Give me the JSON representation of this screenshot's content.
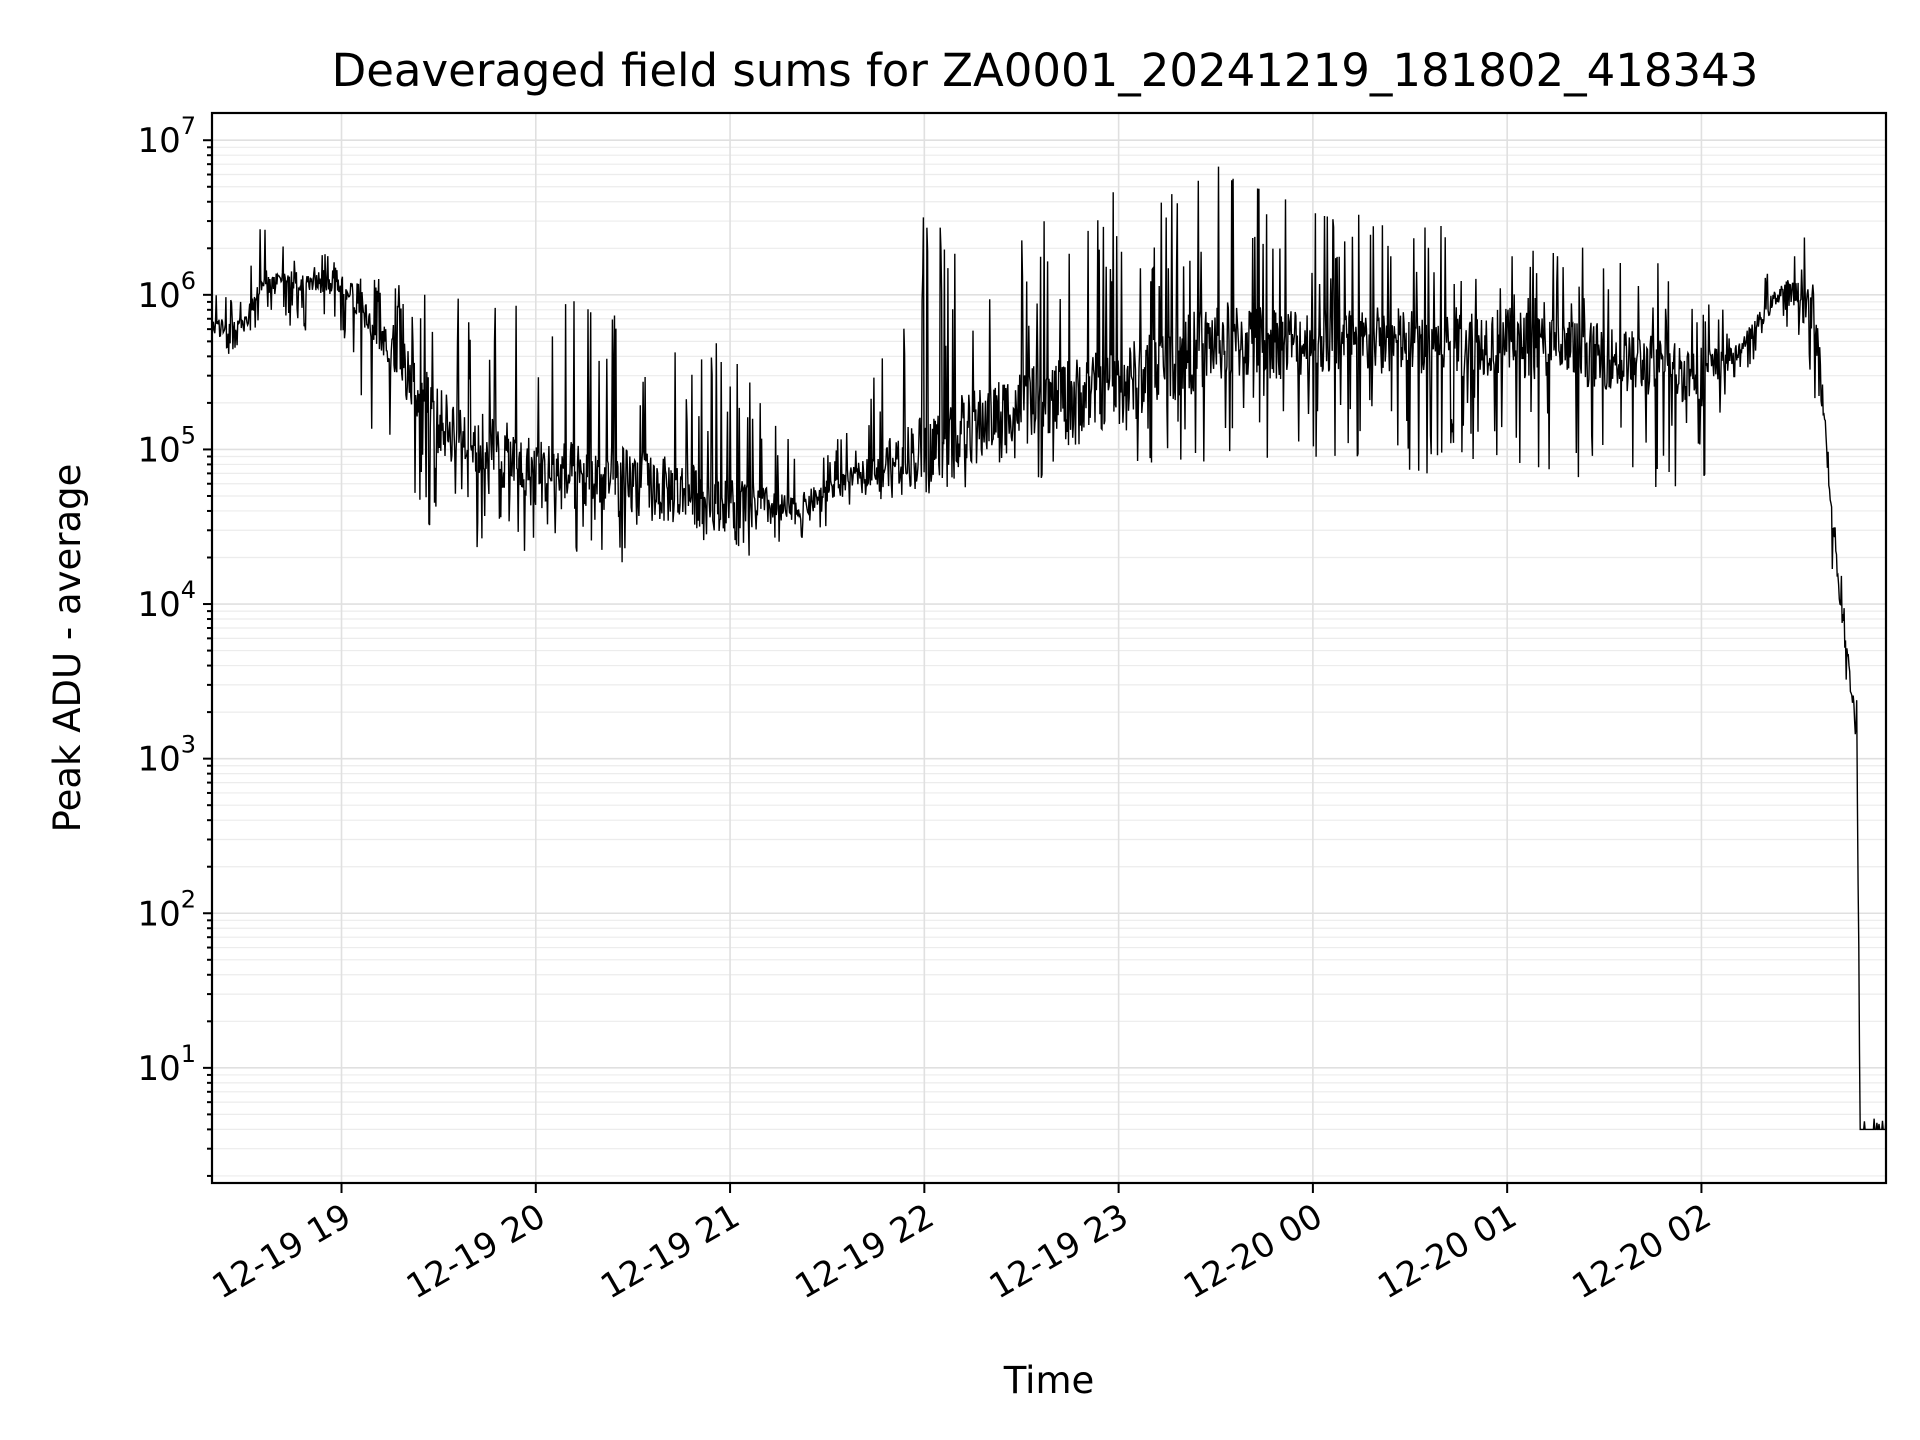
{
  "chart_data": {
    "type": "line",
    "title": "Deaveraged field sums for ZA0001_20241219_181802_418343",
    "xlabel": "Time",
    "ylabel": "Peak ADU - average",
    "yscale": "log",
    "xlim": [
      "2024-12-19 18:20",
      "2024-12-20 02:57"
    ],
    "ylim": [
      1.8,
      15000000
    ],
    "grid": true,
    "line_color": "#000000",
    "x_ticks": [
      {
        "value": "2024-12-19 19:00",
        "label": "12-19 19"
      },
      {
        "value": "2024-12-19 20:00",
        "label": "12-19 20"
      },
      {
        "value": "2024-12-19 21:00",
        "label": "12-19 21"
      },
      {
        "value": "2024-12-19 22:00",
        "label": "12-19 22"
      },
      {
        "value": "2024-12-19 23:00",
        "label": "12-19 23"
      },
      {
        "value": "2024-12-20 00:00",
        "label": "12-20 00"
      },
      {
        "value": "2024-12-20 01:00",
        "label": "12-20 01"
      },
      {
        "value": "2024-12-20 02:00",
        "label": "12-20 02"
      }
    ],
    "y_ticks": [
      {
        "value": 10,
        "base": "10",
        "exp": "1"
      },
      {
        "value": 100,
        "base": "10",
        "exp": "2"
      },
      {
        "value": 1000,
        "base": "10",
        "exp": "3"
      },
      {
        "value": 10000,
        "base": "10",
        "exp": "4"
      },
      {
        "value": 100000,
        "base": "10",
        "exp": "5"
      },
      {
        "value": 1000000,
        "base": "10",
        "exp": "6"
      },
      {
        "value": 10000000,
        "base": "10",
        "exp": "7"
      }
    ],
    "series_envelope": [
      {
        "time": "2024-12-19 18:20",
        "typical": 600000,
        "low": 400000,
        "high": 1000000
      },
      {
        "time": "2024-12-19 18:30",
        "typical": 650000,
        "low": 400000,
        "high": 1000000
      },
      {
        "time": "2024-12-19 18:35",
        "typical": 1200000,
        "low": 700000,
        "high": 3000000
      },
      {
        "time": "2024-12-19 18:45",
        "typical": 1200000,
        "low": 600000,
        "high": 2000000
      },
      {
        "time": "2024-12-19 19:00",
        "typical": 1200000,
        "low": 500000,
        "high": 1800000
      },
      {
        "time": "2024-12-19 19:10",
        "typical": 700000,
        "low": 100000,
        "high": 1300000
      },
      {
        "time": "2024-12-19 19:30",
        "typical": 150000,
        "low": 25000,
        "high": 1000000
      },
      {
        "time": "2024-12-19 20:00",
        "typical": 70000,
        "low": 20000,
        "high": 1000000
      },
      {
        "time": "2024-12-19 20:30",
        "typical": 60000,
        "low": 18000,
        "high": 900000
      },
      {
        "time": "2024-12-19 21:00",
        "typical": 45000,
        "low": 20000,
        "high": 500000
      },
      {
        "time": "2024-12-19 21:20",
        "typical": 40000,
        "low": 22000,
        "high": 100000
      },
      {
        "time": "2024-12-19 21:40",
        "typical": 70000,
        "low": 45000,
        "high": 150000
      },
      {
        "time": "2024-12-19 22:00",
        "typical": 100000,
        "low": 50000,
        "high": 3500000
      },
      {
        "time": "2024-12-19 22:30",
        "typical": 200000,
        "low": 60000,
        "high": 2500000
      },
      {
        "time": "2024-12-19 23:00",
        "typical": 250000,
        "low": 70000,
        "high": 6000000
      },
      {
        "time": "2024-12-19 23:30",
        "typical": 500000,
        "low": 80000,
        "high": 7000000
      },
      {
        "time": "2024-12-20 00:00",
        "typical": 500000,
        "low": 80000,
        "high": 4000000
      },
      {
        "time": "2024-12-20 00:30",
        "typical": 500000,
        "low": 70000,
        "high": 3000000
      },
      {
        "time": "2024-12-20 01:00",
        "typical": 500000,
        "low": 60000,
        "high": 2500000
      },
      {
        "time": "2024-12-20 01:30",
        "typical": 400000,
        "low": 60000,
        "high": 2000000
      },
      {
        "time": "2024-12-20 02:00",
        "typical": 300000,
        "low": 50000,
        "high": 1500000
      },
      {
        "time": "2024-12-20 02:10",
        "typical": 400000,
        "low": 250000,
        "high": 600000
      },
      {
        "time": "2024-12-20 02:25",
        "typical": 1100000,
        "low": 700000,
        "high": 2000000
      },
      {
        "time": "2024-12-20 02:35",
        "typical": 800000,
        "low": 200000,
        "high": 3500000
      },
      {
        "time": "2024-12-20 02:40",
        "typical": 50000,
        "low": 20000,
        "high": 100000
      },
      {
        "time": "2024-12-20 02:43",
        "typical": 10000,
        "low": 4000,
        "high": 20000
      },
      {
        "time": "2024-12-20 02:48",
        "typical": 1500,
        "low": 1000,
        "high": 3000
      },
      {
        "time": "2024-12-20 02:49",
        "typical": 4,
        "low": 3.8,
        "high": 5
      },
      {
        "time": "2024-12-20 02:57",
        "typical": 4,
        "low": 3.8,
        "high": 5
      }
    ]
  }
}
